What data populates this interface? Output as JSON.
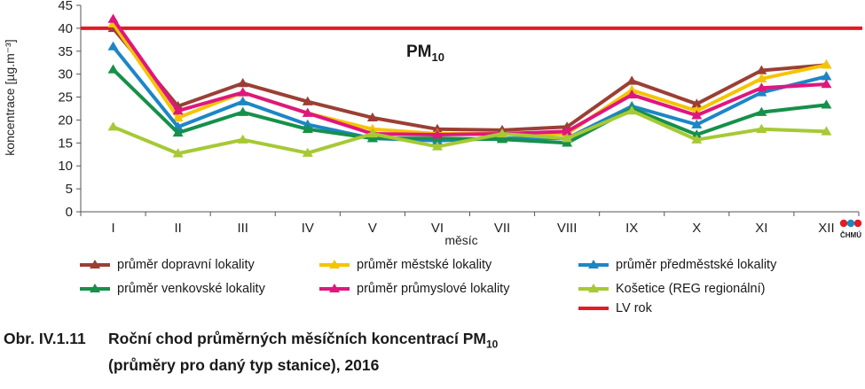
{
  "chart_data": {
    "type": "line",
    "ylabel": "koncentrace [µg.m⁻³]",
    "xlabel": "měsíc",
    "ylim": [
      0,
      45
    ],
    "yticks": [
      0,
      5,
      10,
      15,
      20,
      25,
      30,
      35,
      40,
      45
    ],
    "categories": [
      "I",
      "II",
      "III",
      "IV",
      "V",
      "VI",
      "VII",
      "VIII",
      "IX",
      "X",
      "XI",
      "XII"
    ],
    "series": [
      {
        "name": "průměr dopravní lokality",
        "color": "#9b3f34",
        "marker": "triangle",
        "values": [
          40.0,
          23.0,
          28.0,
          24.0,
          20.5,
          18.0,
          17.8,
          18.5,
          28.5,
          23.5,
          30.8,
          32.0
        ]
      },
      {
        "name": "průměr městské lokality",
        "color": "#f5c400",
        "marker": "triangle",
        "values": [
          41.0,
          20.5,
          26.0,
          21.5,
          18.0,
          17.0,
          17.0,
          17.0,
          26.5,
          22.0,
          29.0,
          32.0
        ]
      },
      {
        "name": "průměr předměstské lokality",
        "color": "#1c86c6",
        "marker": "triangle",
        "values": [
          36.0,
          18.5,
          24.0,
          19.0,
          16.0,
          15.5,
          16.0,
          16.0,
          23.0,
          19.0,
          26.0,
          29.5
        ]
      },
      {
        "name": "průměr venkovské lokality",
        "color": "#16904a",
        "marker": "triangle",
        "values": [
          31.0,
          17.2,
          21.7,
          18.0,
          16.0,
          16.0,
          15.8,
          15.0,
          22.5,
          16.8,
          21.7,
          23.3
        ]
      },
      {
        "name": "průměr průmyslové lokality",
        "color": "#e0167e",
        "marker": "triangle",
        "values": [
          42.0,
          22.0,
          26.0,
          21.5,
          17.0,
          16.8,
          17.0,
          17.5,
          25.5,
          21.0,
          27.0,
          27.8
        ]
      },
      {
        "name": "Košetice (REG regionální)",
        "color": "#a6c934",
        "marker": "triangle",
        "values": [
          18.5,
          12.7,
          15.7,
          12.8,
          17.0,
          14.2,
          17.0,
          16.0,
          22.0,
          15.7,
          18.0,
          17.5
        ]
      },
      {
        "name": "LV rok",
        "color": "#e31b23",
        "marker": "none",
        "type": "hline",
        "value": 40
      }
    ],
    "annotation": {
      "text_main": "PM",
      "text_sub": "10",
      "attached_to": "LV rok"
    },
    "legend_position": "bottom",
    "grid": false
  },
  "caption": {
    "number": "Obr. IV.1.11",
    "title_line1": "Roční chod průměrných měsíčních koncentrací PM",
    "title_sub": "10",
    "title_line2": "(průměry pro daný typ stanice), 2016"
  },
  "logo": {
    "text": "ČHMÚ",
    "colors": [
      "#e31b23",
      "#1c86c6"
    ]
  }
}
